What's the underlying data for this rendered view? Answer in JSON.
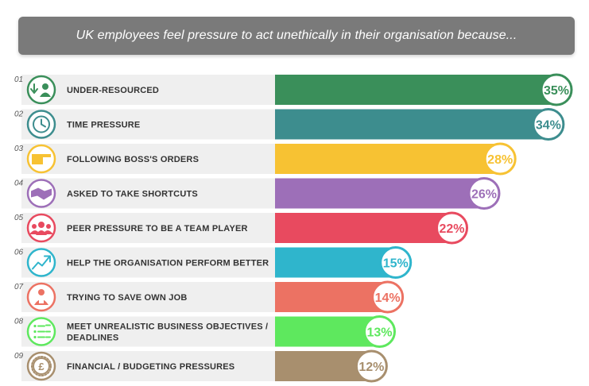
{
  "title": "UK employees feel pressure to act unethically in their organisation because...",
  "chart_data": {
    "type": "bar",
    "orientation": "horizontal",
    "title": "UK employees feel pressure to act unethically in their organisation because...",
    "unit": "%",
    "xlim": [
      0,
      35
    ],
    "grid": false,
    "categories": [
      "UNDER-RESOURCED",
      "TIME PRESSURE",
      "FOLLOWING BOSS'S ORDERS",
      "ASKED TO TAKE SHORTCUTS",
      "PEER PRESSURE TO BE A TEAM PLAYER",
      "HELP THE ORGANISATION PERFORM BETTER",
      "TRYING TO SAVE OWN JOB",
      "MEET UNREALISTIC BUSINESS OBJECTIVES / DEADLINES",
      "FINANCIAL / BUDGETING PRESSURES"
    ],
    "ranks": [
      "01",
      "02",
      "03",
      "04",
      "05",
      "06",
      "07",
      "08",
      "09"
    ],
    "values": [
      35,
      34,
      28,
      26,
      22,
      15,
      14,
      13,
      12
    ],
    "value_labels": [
      "35%",
      "34%",
      "28%",
      "26%",
      "22%",
      "15%",
      "14%",
      "13%",
      "12%"
    ],
    "colors": [
      "#3a8f5a",
      "#3d8d8e",
      "#f7c233",
      "#9d6fb8",
      "#e84a5f",
      "#2fb5cc",
      "#ec7263",
      "#5ee85e",
      "#a88f6e"
    ],
    "icons": [
      "down-arrow-person-icon",
      "clock-icon",
      "pointing-hand-icon",
      "handshake-icon",
      "group-icon",
      "trend-up-icon",
      "locked-person-icon",
      "checklist-icon",
      "pound-coin-icon"
    ]
  }
}
